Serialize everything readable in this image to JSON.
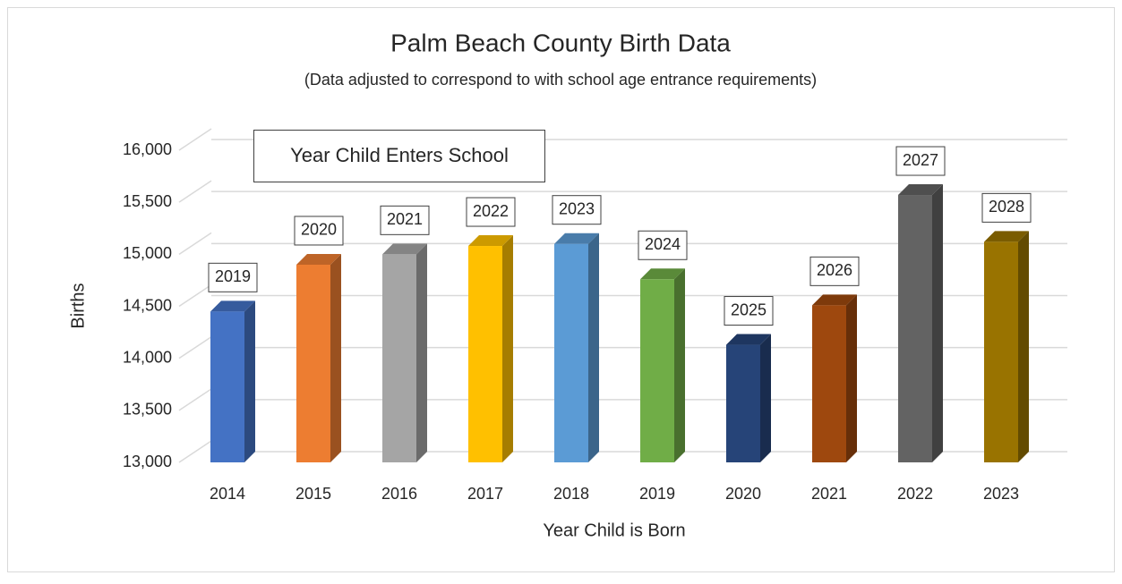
{
  "chart_data": {
    "type": "bar",
    "title": "Palm Beach County Birth Data",
    "subtitle": "(Data adjusted to correspond to with school age entrance requirements)",
    "annotation": "Year Child Enters School",
    "x_label": "Year Child is Born",
    "y_label": "Births",
    "categories": [
      "2014",
      "2015",
      "2016",
      "2017",
      "2018",
      "2019",
      "2020",
      "2021",
      "2022",
      "2023"
    ],
    "values": [
      14450,
      14900,
      15000,
      15080,
      15100,
      14760,
      14130,
      14510,
      15570,
      15120
    ],
    "school_years": [
      "2019",
      "2020",
      "2021",
      "2022",
      "2023",
      "2024",
      "2025",
      "2026",
      "2027",
      "2028"
    ],
    "colors": [
      "#4472c4",
      "#ed7d31",
      "#a5a5a5",
      "#ffc000",
      "#5b9bd5",
      "#70ad47",
      "#264478",
      "#9e480e",
      "#636363",
      "#997300"
    ],
    "ylim": [
      13000,
      16000
    ],
    "yticks": [
      {
        "value": 13000,
        "label": "13,000"
      },
      {
        "value": 13500,
        "label": "13,500"
      },
      {
        "value": 14000,
        "label": "14,000"
      },
      {
        "value": 14500,
        "label": "14,500"
      },
      {
        "value": 15000,
        "label": "15,000"
      },
      {
        "value": 15500,
        "label": "15,500"
      },
      {
        "value": 16000,
        "label": "16,000"
      }
    ],
    "grid": true
  }
}
